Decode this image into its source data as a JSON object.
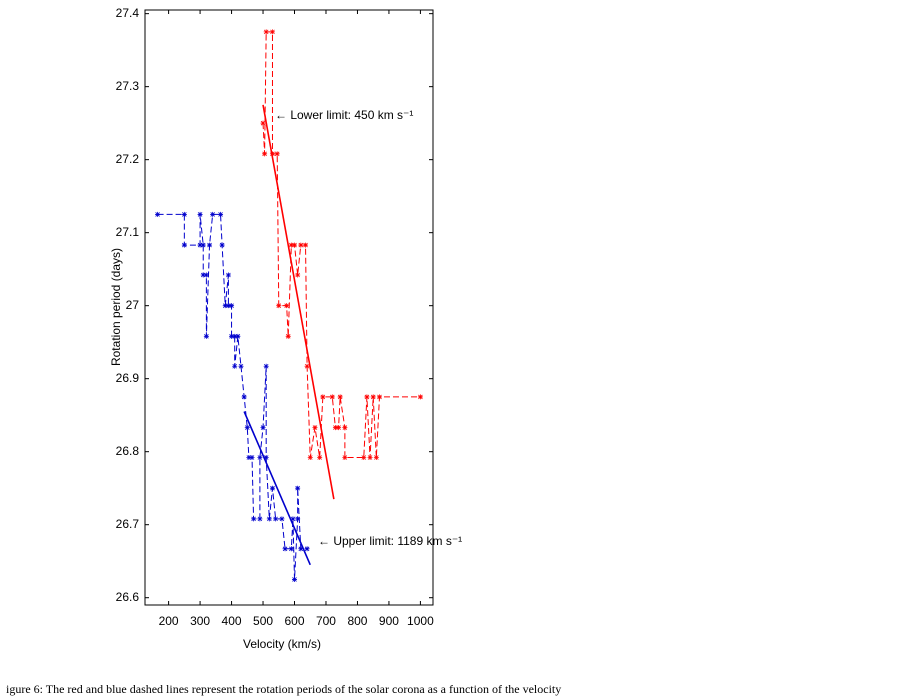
{
  "chart_data": {
    "type": "line",
    "xlabel": "Velocity (km/s)",
    "ylabel": "Rotation period (days)",
    "xlim": [
      125,
      1040
    ],
    "xticks": [
      200,
      300,
      400,
      500,
      600,
      700,
      800,
      900,
      1000
    ],
    "ylim": [
      26.59,
      27.405
    ],
    "yticks": [
      26.6,
      26.7,
      26.8,
      26.9,
      27,
      27.1,
      27.2,
      27.3,
      27.4
    ],
    "series": [
      {
        "color": "#0000cc",
        "x": [
          165,
          250,
          250,
          300,
          300,
          310,
          310,
          320,
          320,
          330,
          340,
          365,
          370,
          380,
          390,
          390,
          400,
          400,
          410,
          410,
          420,
          430,
          440,
          450,
          455,
          465,
          470,
          490,
          490,
          500,
          510,
          510,
          520,
          530,
          540,
          560,
          570,
          590,
          595,
          600,
          610,
          610,
          620,
          640
        ],
        "values": [
          27.125,
          27.125,
          27.083,
          27.083,
          27.125,
          27.083,
          27.042,
          27.042,
          26.958,
          27.083,
          27.125,
          27.125,
          27.083,
          27.0,
          27.042,
          27.0,
          27.0,
          26.958,
          26.958,
          26.917,
          26.958,
          26.917,
          26.875,
          26.833,
          26.792,
          26.792,
          26.708,
          26.708,
          26.792,
          26.833,
          26.917,
          26.792,
          26.708,
          26.75,
          26.708,
          26.708,
          26.667,
          26.667,
          26.708,
          26.625,
          26.708,
          26.75,
          26.667,
          26.667
        ]
      },
      {
        "color": "#ff0000",
        "x": [
          500,
          505,
          510,
          530,
          530,
          545,
          550,
          575,
          580,
          590,
          600,
          610,
          620,
          635,
          640,
          650,
          665,
          680,
          690,
          720,
          730,
          740,
          745,
          760,
          760,
          820,
          830,
          840,
          850,
          860,
          870,
          1000
        ],
        "values": [
          27.25,
          27.208,
          27.375,
          27.375,
          27.208,
          27.208,
          27.0,
          27.0,
          26.958,
          27.083,
          27.083,
          27.042,
          27.083,
          27.083,
          26.917,
          26.792,
          26.833,
          26.792,
          26.875,
          26.875,
          26.833,
          26.833,
          26.875,
          26.833,
          26.792,
          26.792,
          26.875,
          26.792,
          26.875,
          26.792,
          26.875,
          26.875
        ]
      }
    ],
    "fits": [
      {
        "color": "#0000cc",
        "x": [
          440,
          650
        ],
        "values": [
          26.855,
          26.645
        ]
      },
      {
        "color": "#ff0000",
        "x": [
          500,
          725
        ],
        "values": [
          27.275,
          26.735
        ]
      }
    ],
    "annotations": [
      {
        "text": "← Lower limit: 450 km s⁻¹",
        "color": "#ff0000"
      },
      {
        "text": "← Upper limit: 1189 km s⁻¹",
        "color": "#0000cc"
      }
    ],
    "caption": "igure 6: The red and blue dashed lines represent the rotation periods of the solar corona as a function of the velocity"
  }
}
